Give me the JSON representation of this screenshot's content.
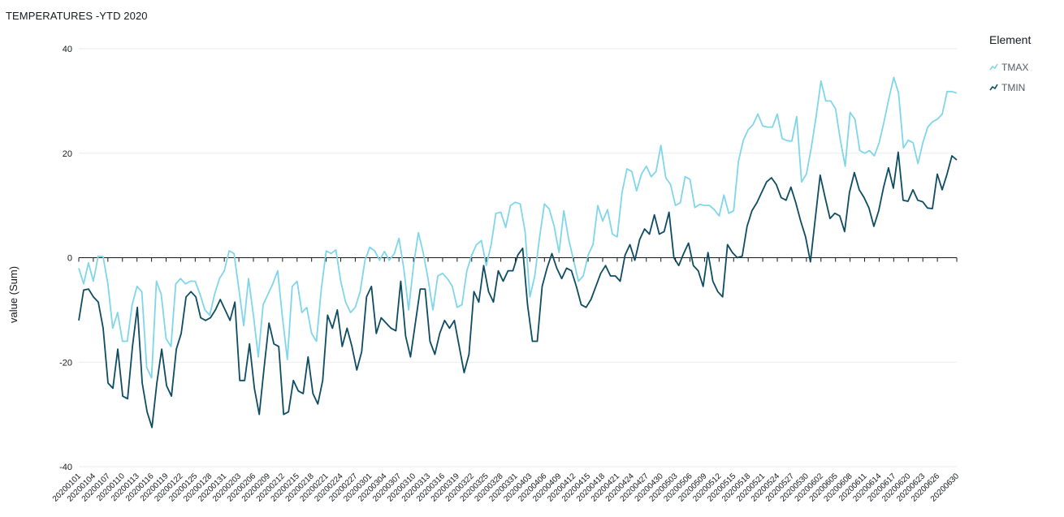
{
  "chart_data": {
    "type": "line",
    "title": "TEMPERATURES -YTD 2020",
    "xlabel": "",
    "ylabel": "value (Sum)",
    "ylim": [
      -40,
      40
    ],
    "yticks": [
      -40,
      -20,
      0,
      20,
      40
    ],
    "grid": true,
    "legend": {
      "title": "Element",
      "position": "right"
    },
    "x_tick_labels": [
      "20200101",
      "20200104",
      "20200107",
      "20200110",
      "20200113",
      "20200116",
      "20200119",
      "20200122",
      "20200125",
      "20200128",
      "20200131",
      "20200203",
      "20200206",
      "20200209",
      "20200212",
      "20200215",
      "20200218",
      "20200221",
      "20200224",
      "20200227",
      "20200301",
      "20200304",
      "20200307",
      "20200310",
      "20200313",
      "20200316",
      "20200319",
      "20200322",
      "20200325",
      "20200328",
      "20200331",
      "20200403",
      "20200406",
      "20200409",
      "20200412",
      "20200415",
      "20200418",
      "20200421",
      "20200424",
      "20200427",
      "20200430",
      "20200503",
      "20200506",
      "20200509",
      "20200512",
      "20200515",
      "20200518",
      "20200521",
      "20200524",
      "20200527",
      "20200530",
      "20200602",
      "20200605",
      "20200608",
      "20200611",
      "20200614",
      "20200617",
      "20200620",
      "20200623",
      "20200626",
      "20200630"
    ],
    "x_first": "20200101",
    "x_last": "20200630",
    "series": [
      {
        "name": "TMAX",
        "color": "#7fd6ea",
        "values": [
          -2,
          -5,
          -1,
          -4.5,
          0.3,
          0.2,
          -5,
          -13.5,
          -10.5,
          -16,
          -16,
          -9,
          -5.5,
          -6.5,
          -21,
          -23,
          -4.5,
          -7,
          -15.5,
          -17,
          -5,
          -4,
          -5,
          -4.5,
          -4.5,
          -7,
          -10,
          -11,
          -7,
          -4,
          -2.5,
          1.3,
          0.8,
          -6,
          -13,
          -4,
          -11,
          -19,
          -9,
          -7,
          -5,
          -2.5,
          -11.5,
          -19.5,
          -5.5,
          -4.5,
          -10.5,
          -9.5,
          -14.5,
          -16,
          -6,
          1.3,
          0.8,
          1.5,
          -4.5,
          -8.5,
          -10.5,
          -9.5,
          -6.5,
          -0.5,
          2,
          1.3,
          -0.5,
          1.2,
          -0.5,
          0.7,
          3.7,
          -2,
          -10,
          -1.5,
          4.8,
          1,
          -4,
          -10,
          -3.5,
          -3,
          -4,
          -5.5,
          -9.5,
          -9,
          -2.5,
          0.5,
          2.5,
          3.3,
          -1.5,
          2.5,
          8.5,
          8.7,
          5.8,
          10,
          10.6,
          10.3,
          5,
          -7.5,
          -3.5,
          4,
          10.3,
          9.3,
          6,
          1,
          9,
          3.5,
          -0.5,
          -4.5,
          -3.5,
          0.5,
          2.5,
          10,
          7,
          9.2,
          4.5,
          4,
          12.5,
          17,
          16.5,
          12.8,
          16,
          17.5,
          15.5,
          16.5,
          21.5,
          15.3,
          14,
          10,
          10.5,
          15.5,
          15,
          9.6,
          10.2,
          10,
          10,
          9.2,
          8,
          12,
          8.5,
          9,
          18.5,
          22.5,
          24.5,
          25.5,
          27.5,
          25.2,
          25,
          25,
          27.5,
          22.8,
          22.4,
          22.3,
          27,
          14.5,
          16,
          21,
          27,
          33.8,
          30,
          30,
          28.5,
          22.5,
          17.5,
          27.8,
          26.5,
          20.5,
          20,
          20.5,
          19.5,
          22,
          26,
          30.5,
          34.5,
          31.5,
          21,
          22.5,
          22,
          18,
          22,
          25,
          26,
          26.5,
          27.5,
          31.8,
          31.8,
          31.5
        ]
      },
      {
        "name": "TMIN",
        "color": "#0d4c62",
        "values": [
          -12,
          -6.2,
          -6,
          -7.5,
          -8.5,
          -13.5,
          -24,
          -25,
          -17.5,
          -26.5,
          -27,
          -17,
          -9.5,
          -24,
          -29.5,
          -32.5,
          -24,
          -17.5,
          -24.5,
          -26.5,
          -17.5,
          -14.5,
          -7.5,
          -6.5,
          -7.5,
          -11.5,
          -12,
          -11.5,
          -10,
          -8,
          -10,
          -12,
          -8.5,
          -23.5,
          -23.5,
          -16.5,
          -25,
          -30,
          -21,
          -12.5,
          -16.5,
          -17,
          -30,
          -29.5,
          -23.5,
          -25.5,
          -26,
          -19,
          -26,
          -28,
          -23.5,
          -11,
          -13.5,
          -10,
          -17,
          -13.5,
          -17,
          -21.5,
          -18,
          -7.5,
          -5.5,
          -14.5,
          -11.5,
          -12.5,
          -13.5,
          -14,
          -4.5,
          -15,
          -19,
          -12.5,
          -6,
          -6,
          -16,
          -18.5,
          -14.5,
          -12,
          -13.5,
          -12,
          -17,
          -22,
          -18.5,
          -6.5,
          -8.5,
          -1.5,
          -6.5,
          -8.5,
          -2.5,
          -4.5,
          -2.5,
          -2.5,
          0.5,
          1.8,
          -9,
          -16,
          -16,
          -5.5,
          -2,
          0.8,
          -2,
          -4,
          -2,
          -2.5,
          -5.5,
          -9,
          -9.5,
          -8,
          -5.5,
          -3,
          -1.5,
          -3.5,
          -3.5,
          -4.5,
          0.5,
          2.5,
          -0.5,
          3.5,
          5.5,
          4.5,
          8.2,
          4.5,
          5,
          8.7,
          0,
          -1.5,
          0.8,
          2.8,
          -1.5,
          -2.5,
          -5.5,
          1,
          -4.5,
          -6.5,
          -7.5,
          2.5,
          1,
          0,
          0.3,
          6,
          9,
          10.5,
          12.5,
          14.5,
          15.3,
          14,
          11.5,
          11,
          13.5,
          10.5,
          7,
          4,
          -0.8,
          7.5,
          15.8,
          11.5,
          7.5,
          8.5,
          8,
          5,
          12.5,
          16.3,
          13,
          11.5,
          9.5,
          6,
          9,
          13.5,
          17.2,
          13.3,
          20.2,
          11,
          10.8,
          13,
          11,
          10.7,
          9.5,
          9.4,
          16,
          13,
          16,
          19.5,
          18.7
        ]
      }
    ]
  }
}
